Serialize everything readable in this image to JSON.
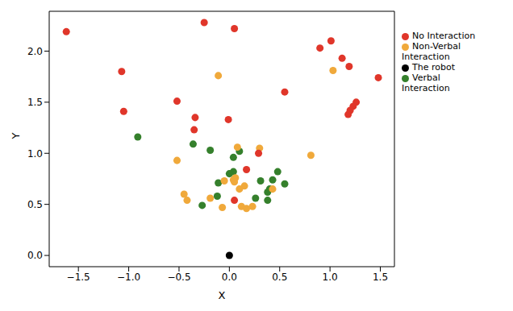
{
  "chart_data": {
    "type": "scatter",
    "xlabel": "X",
    "ylabel": "Y",
    "xlim": [
      -1.79,
      1.64
    ],
    "ylim": [
      -0.11,
      2.39
    ],
    "xticks": [
      {
        "value": -1.5,
        "label": "−1.5"
      },
      {
        "value": -1.0,
        "label": "−1.0"
      },
      {
        "value": -0.5,
        "label": "−0.5"
      },
      {
        "value": 0.0,
        "label": "0.0"
      },
      {
        "value": 0.5,
        "label": "0.5"
      },
      {
        "value": 1.0,
        "label": "1.0"
      },
      {
        "value": 1.5,
        "label": "1.5"
      }
    ],
    "yticks": [
      {
        "value": 0.0,
        "label": "0.0"
      },
      {
        "value": 0.5,
        "label": "0.5"
      },
      {
        "value": 1.0,
        "label": "1.0"
      },
      {
        "value": 1.5,
        "label": "1.5"
      },
      {
        "value": 2.0,
        "label": "2.0"
      }
    ],
    "grid": false,
    "legend": "right",
    "marker": "circle",
    "series": [
      {
        "name": "The robot",
        "color": "#000000",
        "x": [
          0.0
        ],
        "y": [
          0.0
        ]
      },
      {
        "name": "Verbal Interaction",
        "color": "#35802c",
        "x": [
          -0.91,
          -0.36,
          -0.19,
          0.04,
          0.1,
          0.04,
          0.0,
          0.48,
          0.43,
          0.31,
          0.55,
          0.38,
          0.4,
          -0.11,
          -0.12,
          0.38,
          0.26,
          -0.27
        ],
        "y": [
          1.16,
          1.09,
          1.03,
          0.96,
          1.02,
          0.82,
          0.8,
          0.82,
          0.74,
          0.73,
          0.7,
          0.62,
          0.65,
          0.71,
          0.58,
          0.54,
          0.56,
          0.49
        ]
      },
      {
        "name": "Non-Verbal Interaction",
        "color": "#f0a93b",
        "x": [
          -0.11,
          1.03,
          -0.52,
          0.08,
          0.3,
          0.81,
          0.06,
          0.04,
          0.05,
          -0.05,
          0.15,
          0.1,
          0.43,
          -0.45,
          -0.42,
          -0.19,
          -0.07,
          0.12,
          0.17,
          0.23
        ],
        "y": [
          1.76,
          1.81,
          0.93,
          1.06,
          1.05,
          0.98,
          0.76,
          0.74,
          0.72,
          0.73,
          0.68,
          0.65,
          0.65,
          0.6,
          0.54,
          0.56,
          0.47,
          0.48,
          0.46,
          0.48
        ]
      },
      {
        "name": "No Interaction",
        "color": "#e0362a",
        "x": [
          -1.62,
          -0.25,
          0.05,
          -1.07,
          -1.05,
          -0.52,
          -0.34,
          -0.35,
          -0.01,
          0.55,
          0.9,
          1.01,
          1.12,
          1.19,
          1.48,
          1.26,
          1.23,
          1.2,
          1.18,
          0.29,
          0.17,
          0.05
        ],
        "y": [
          2.19,
          2.28,
          2.22,
          1.8,
          1.41,
          1.51,
          1.35,
          1.23,
          1.33,
          1.6,
          2.03,
          2.1,
          1.93,
          1.85,
          1.74,
          1.5,
          1.46,
          1.42,
          1.38,
          1.0,
          0.84,
          0.54
        ]
      }
    ]
  }
}
